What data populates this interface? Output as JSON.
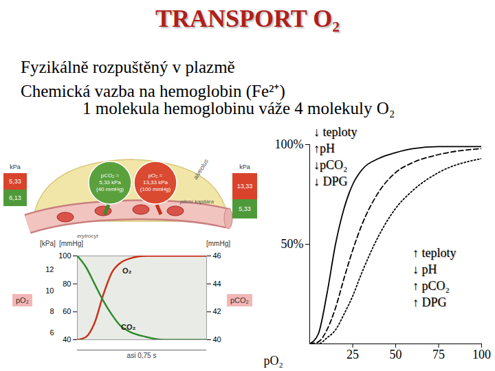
{
  "title": "TRANSPORT O₂",
  "lines": [
    "Fyzikálně rozpuštěný v plazmě",
    "Chemická vazba na hemoglobin (Fe²⁺)",
    "1 molekula hemoglobinu váže 4 molekuly O₂"
  ],
  "diagram": {
    "left_scale": {
      "unit": "kPa",
      "values": [
        "5,33",
        "6,13"
      ]
    },
    "right_scale": {
      "unit": "kPa",
      "values": [
        "13,33",
        "5,33"
      ]
    },
    "co2_circle": [
      "pCO₂ =",
      "5,33 kPa",
      "(40 mmHg)"
    ],
    "o2_circle": [
      "pO₂ =",
      "13,33 kPa",
      "(100 mmHg)"
    ],
    "labels": {
      "alveolus": "alveolus",
      "capillary": "plicní kapilára",
      "erythrocyte": "erytrocyt"
    }
  },
  "chart_data": [
    {
      "type": "line",
      "x_label": "asi 0,75 s",
      "y_label": "pO₂",
      "y2_label": "pCO₂",
      "y_unit": "[mmHg]",
      "y_unit_alt": "[kPa]",
      "y2_unit": "[mmHg]",
      "tick_labels": "y",
      "x": [
        0,
        0.05,
        0.1,
        0.15,
        0.2,
        0.25,
        0.3,
        0.4,
        0.5,
        0.6,
        0.75
      ],
      "xlim": [
        0,
        0.75
      ],
      "ylim": [
        40,
        100
      ],
      "yticks": [
        40,
        60,
        80,
        100
      ],
      "y_alt_ticks": [
        {
          "value": 45,
          "label": "6"
        },
        {
          "value": 60,
          "label": "8"
        },
        {
          "value": 75,
          "label": "10"
        },
        {
          "value": 90,
          "label": "12"
        }
      ],
      "y2lim": [
        40,
        46
      ],
      "y2ticks": [
        40,
        42,
        44,
        46
      ],
      "series": [
        {
          "name": "O₂",
          "color": "#c8321e",
          "values": [
            40,
            42,
            52,
            72,
            88,
            95,
            98,
            100,
            100,
            100,
            100
          ]
        },
        {
          "name": "CO₂",
          "color": "#2e8b2e",
          "axis": "y2",
          "values": [
            46,
            45.2,
            44,
            42.8,
            41.8,
            41,
            40.6,
            40.2,
            40,
            40,
            40
          ]
        }
      ]
    },
    {
      "type": "line",
      "x": [
        0,
        5,
        10,
        15,
        20,
        25,
        30,
        40,
        50,
        60,
        75,
        100
      ],
      "xlim": [
        0,
        100
      ],
      "xticks": [
        25,
        50,
        75,
        100
      ],
      "x_label": "pO₂",
      "ylim": [
        0,
        100
      ],
      "yticks": [
        {
          "value": 50,
          "label": "50%"
        },
        {
          "value": 100,
          "label": "100%"
        }
      ],
      "annotations": [
        [
          "↓ teploty",
          "↑pH",
          "↓pCO₂",
          "↓ DPG"
        ],
        [
          "↑ teploty",
          "↓ pH",
          "↑ pCO₂",
          "↑ DPG"
        ]
      ],
      "series": [
        {
          "color": "#000000",
          "line_style": "solid",
          "values": [
            0,
            5,
            25,
            50,
            68,
            80,
            87,
            93,
            96,
            98,
            99,
            99
          ]
        },
        {
          "color": "#000000",
          "line_style": "dashed",
          "values": [
            0,
            1,
            7,
            18,
            33,
            47,
            59,
            76,
            86,
            91,
            95,
            98
          ]
        },
        {
          "color": "#000000",
          "line_style": "dotted",
          "values": [
            0,
            0,
            3,
            7,
            15,
            24,
            35,
            54,
            68,
            77,
            86,
            93
          ]
        }
      ]
    }
  ]
}
